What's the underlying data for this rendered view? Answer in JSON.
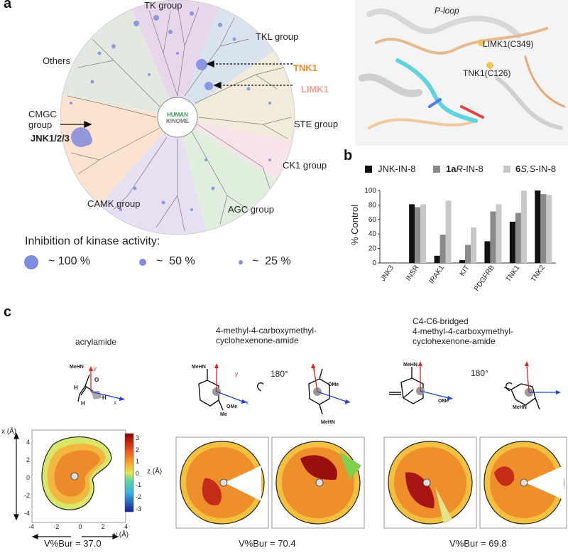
{
  "panel_a": {
    "label": "a",
    "groups": [
      "TK group",
      "TKL group",
      "STE group",
      "CK1 group",
      "AGC group",
      "CAMK group",
      "CMGC group",
      "Others"
    ],
    "center_logo": [
      "HUMAN",
      "KINOME"
    ],
    "callouts": {
      "tnk1": "TNK1",
      "limk1": "LIMK1",
      "jnk": "JNK1/2/3"
    },
    "legend_title": "Inhibition of kinase activity:",
    "legend": [
      "~ 100 %",
      "~  50 %",
      "~  25 %"
    ],
    "structure": {
      "ploop": "P-loop",
      "limk1_res": "LIMK1(C349)",
      "tnk1_res": "TNK1(C126)"
    },
    "colors": {
      "tnk1": "#f0892a",
      "limk1": "#f2a0a0",
      "dots": "#6f7fe0"
    }
  },
  "panel_b": {
    "label": "b"
  },
  "chart_data": {
    "type": "bar",
    "title": "",
    "xlabel": "",
    "ylabel": "% Control",
    "ylim": [
      0,
      100
    ],
    "yticks": [
      "0",
      "20",
      "40",
      "60",
      "80",
      "100"
    ],
    "categories": [
      "JNK3",
      "INSR",
      "IRAK1",
      "KIT",
      "PDGFRB",
      "TNK1",
      "TNK2"
    ],
    "series": [
      {
        "name": "JNK-IN-8",
        "color": "#111111",
        "values": [
          0,
          81,
          10,
          4,
          30,
          57,
          100
        ]
      },
      {
        "name": "1aR-IN-8",
        "color": "#8a8a8a",
        "values": [
          0,
          77,
          39,
          25,
          71,
          69,
          95
        ]
      },
      {
        "name": "6S,S-IN-8",
        "color": "#c8c8c8",
        "values": [
          0,
          81,
          86,
          49,
          81,
          100,
          94
        ]
      }
    ],
    "legend_parts": [
      {
        "a": "",
        "b": "JNK-IN-8",
        "c": ""
      },
      {
        "a": "1a",
        "b": "R",
        "c": "-IN-8"
      },
      {
        "a": "6",
        "b": "S,S",
        "c": "-IN-8"
      }
    ]
  },
  "panel_c": {
    "label": "c",
    "titles": {
      "acrylamide": "acrylamide",
      "methyl_1": "4-methyl-4-carboxymethyl-",
      "methyl_2": "cyclohexenone-amide",
      "bridged_1": "C4-C6-bridged",
      "bridged_2": "4-methyl-4-carboxymethyl-",
      "bridged_3": "cyclohexenone-amide"
    },
    "rotation": "180°",
    "vbur": [
      "V%Bur = 37.0",
      "V%Bur = 70.4",
      "V%Bur = 69.8"
    ],
    "colorbar": {
      "label": "z (Å)",
      "ticks": [
        "3",
        "2",
        "1",
        "0",
        "-1",
        "-2",
        "-3"
      ]
    },
    "axes": {
      "x_label": "x (Å)",
      "y_label": "y (Å)",
      "yticks": [
        "4",
        "2",
        "0",
        "-2",
        "-4"
      ],
      "xticks": [
        "-4",
        "-2",
        "0",
        "2",
        "4"
      ]
    },
    "atoms": {
      "meHN": "MeHN",
      "o": "O",
      "h": "H",
      "y": "y",
      "x": "x",
      "me": "Me",
      "ome": "OMe"
    }
  }
}
